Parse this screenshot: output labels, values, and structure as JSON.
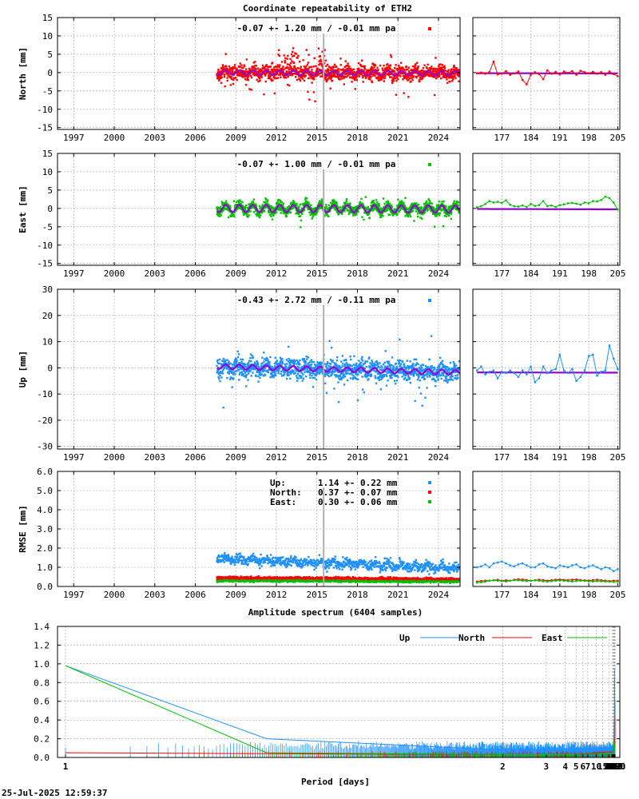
{
  "title": "Coordinate repeatability of ETH2",
  "timestamp": "25-Jul-2025 12:59:37",
  "colors": {
    "north": "#ff0000",
    "east": "#00c000",
    "up": "#1e90ff",
    "model": "#9400d3",
    "grid": "#a0a0a0",
    "marker_line": "#b0b0b0"
  },
  "chart_data": [
    {
      "type": "scatter",
      "ylabel": "North [mm]",
      "annotation": "-0.07 +- 1.20 mm / -0.01 mm pa",
      "series_color": "north",
      "x_ticks": [
        "1997",
        "2000",
        "2003",
        "2006",
        "2009",
        "2012",
        "2015",
        "2018",
        "2021",
        "2024"
      ],
      "xlim": [
        1995.8,
        2025.6
      ],
      "y_ticks": [
        "15",
        "10",
        "5",
        "0",
        "-5",
        "-10",
        "-15"
      ],
      "ylim": [
        -15.5,
        15
      ],
      "data_start": 2007.6,
      "data_end": 2025.55,
      "scatter_sd": 1.6,
      "seasonal_amp": 0.6,
      "trend": [
        0.0,
        -0.2
      ],
      "inset_x_ticks": [
        "177",
        "184",
        "191",
        "198",
        "205"
      ],
      "inset_xlim": [
        170,
        205.5
      ],
      "inset_points": [
        [
          171,
          -0.2
        ],
        [
          172,
          0.0
        ],
        [
          173,
          -0.3
        ],
        [
          174,
          0.1
        ],
        [
          175,
          3.0
        ],
        [
          176,
          -0.5
        ],
        [
          177,
          -0.3
        ],
        [
          178,
          0.4
        ],
        [
          179,
          -0.6
        ],
        [
          180,
          -0.2
        ],
        [
          181,
          0.3
        ],
        [
          182,
          -2.0
        ],
        [
          183,
          -3.2
        ],
        [
          184,
          -0.6
        ],
        [
          185,
          0.1
        ],
        [
          186,
          -0.4
        ],
        [
          187,
          -1.8
        ],
        [
          188,
          0.6
        ],
        [
          189,
          -0.3
        ],
        [
          190,
          0.2
        ],
        [
          191,
          -0.5
        ],
        [
          192,
          0.3
        ],
        [
          193,
          -0.1
        ],
        [
          194,
          0.4
        ],
        [
          195,
          -0.6
        ],
        [
          196,
          0.5
        ],
        [
          197,
          0.1
        ],
        [
          198,
          -0.2
        ],
        [
          199,
          0.2
        ],
        [
          200,
          -0.3
        ],
        [
          201,
          0.1
        ],
        [
          202,
          -0.6
        ],
        [
          203,
          0.3
        ],
        [
          204,
          -0.4
        ],
        [
          205,
          -1.0
        ]
      ]
    },
    {
      "type": "scatter",
      "ylabel": "East [mm]",
      "annotation": "-0.07 +- 1.00 mm / -0.01 mm pa",
      "series_color": "east",
      "x_ticks": [
        "1997",
        "2000",
        "2003",
        "2006",
        "2009",
        "2012",
        "2015",
        "2018",
        "2021",
        "2024"
      ],
      "xlim": [
        1995.8,
        2025.6
      ],
      "y_ticks": [
        "15",
        "10",
        "5",
        "0",
        "-5",
        "-10",
        "-15"
      ],
      "ylim": [
        -15.5,
        15
      ],
      "data_start": 2007.6,
      "data_end": 2025.55,
      "scatter_sd": 1.2,
      "seasonal_amp": 1.0,
      "trend": [
        0.0,
        -0.2
      ],
      "inset_x_ticks": [
        "177",
        "184",
        "191",
        "198",
        "205"
      ],
      "inset_xlim": [
        170,
        205.5
      ],
      "inset_points": [
        [
          171,
          0.3
        ],
        [
          172,
          0.6
        ],
        [
          173,
          1.2
        ],
        [
          174,
          2.0
        ],
        [
          175,
          1.6
        ],
        [
          176,
          1.8
        ],
        [
          177,
          1.5
        ],
        [
          178,
          2.2
        ],
        [
          179,
          1.0
        ],
        [
          180,
          0.6
        ],
        [
          181,
          0.5
        ],
        [
          182,
          0.8
        ],
        [
          183,
          0.4
        ],
        [
          184,
          1.2
        ],
        [
          185,
          0.7
        ],
        [
          186,
          0.9
        ],
        [
          187,
          2.0
        ],
        [
          188,
          0.6
        ],
        [
          189,
          0.8
        ],
        [
          190,
          0.4
        ],
        [
          191,
          0.9
        ],
        [
          192,
          1.1
        ],
        [
          193,
          1.4
        ],
        [
          194,
          1.5
        ],
        [
          195,
          1.3
        ],
        [
          196,
          1.0
        ],
        [
          197,
          1.6
        ],
        [
          198,
          1.4
        ],
        [
          199,
          2.0
        ],
        [
          200,
          1.9
        ],
        [
          201,
          2.3
        ],
        [
          202,
          3.2
        ],
        [
          203,
          2.8
        ],
        [
          204,
          1.6
        ],
        [
          205,
          -0.3
        ]
      ]
    },
    {
      "type": "scatter",
      "ylabel": "Up [mm]",
      "annotation": "-0.43 +- 2.72 mm / -0.11 mm pa",
      "series_color": "up",
      "x_ticks": [
        "1997",
        "2000",
        "2003",
        "2006",
        "2009",
        "2012",
        "2015",
        "2018",
        "2021",
        "2024"
      ],
      "xlim": [
        1995.8,
        2025.6
      ],
      "y_ticks": [
        "30",
        "20",
        "10",
        "0",
        "-10",
        "-20",
        "-30"
      ],
      "ylim": [
        -31,
        30
      ],
      "data_start": 2007.6,
      "data_end": 2025.55,
      "scatter_sd": 3.0,
      "seasonal_amp": 0.9,
      "trend": [
        0.5,
        -1.8
      ],
      "inset_x_ticks": [
        "177",
        "184",
        "191",
        "198",
        "205"
      ],
      "inset_xlim": [
        170,
        205.5
      ],
      "inset_points": [
        [
          171,
          -1.0
        ],
        [
          172,
          0.5
        ],
        [
          173,
          -2.5
        ],
        [
          174,
          -1.5
        ],
        [
          175,
          -1.0
        ],
        [
          176,
          -4.0
        ],
        [
          177,
          -1.5
        ],
        [
          178,
          -2.0
        ],
        [
          179,
          -1.0
        ],
        [
          180,
          -2.0
        ],
        [
          181,
          -3.5
        ],
        [
          182,
          -1.0
        ],
        [
          183,
          -2.5
        ],
        [
          184,
          0.5
        ],
        [
          185,
          -5.5
        ],
        [
          186,
          -4.0
        ],
        [
          187,
          0.5
        ],
        [
          188,
          -2.0
        ],
        [
          189,
          -1.0
        ],
        [
          190,
          -0.5
        ],
        [
          191,
          5.0
        ],
        [
          192,
          -1.0
        ],
        [
          193,
          -2.0
        ],
        [
          194,
          -0.5
        ],
        [
          195,
          -5.0
        ],
        [
          196,
          -3.5
        ],
        [
          197,
          -1.0
        ],
        [
          198,
          4.5
        ],
        [
          199,
          5.0
        ],
        [
          200,
          -3.0
        ],
        [
          201,
          -1.5
        ],
        [
          202,
          -1.0
        ],
        [
          203,
          8.5
        ],
        [
          204,
          3.5
        ],
        [
          205,
          -0.5
        ]
      ]
    },
    {
      "type": "scatter",
      "ylabel": "RMSE [mm]",
      "x_ticks": [
        "1997",
        "2000",
        "2003",
        "2006",
        "2009",
        "2012",
        "2015",
        "2018",
        "2021",
        "2024"
      ],
      "xlim": [
        1995.8,
        2025.6
      ],
      "y_ticks": [
        "6.0",
        "5.0",
        "4.0",
        "3.0",
        "2.0",
        "1.0",
        "0.0"
      ],
      "ylim": [
        0,
        6
      ],
      "data_start": 2007.6,
      "data_end": 2025.55,
      "legend": [
        {
          "label": "Up:",
          "value": "1.14 +- 0.22 mm",
          "color": "up"
        },
        {
          "label": "North:",
          "value": "0.37 +- 0.07 mm",
          "color": "north"
        },
        {
          "label": "East:",
          "value": "0.30 +- 0.06 mm",
          "color": "east"
        }
      ],
      "rmse_means": {
        "up_start": 1.45,
        "up_end": 0.95,
        "north": 0.45,
        "east": 0.3
      },
      "inset_x_ticks": [
        "177",
        "184",
        "191",
        "198",
        "205"
      ],
      "inset_xlim": [
        170,
        205.5
      ],
      "inset_up": [
        1.0,
        1.05,
        1.15,
        1.0,
        1.2,
        1.25,
        1.3,
        1.2,
        1.1,
        1.05,
        1.15,
        1.2,
        1.1,
        1.0,
        1.0,
        1.15,
        1.2,
        1.05,
        1.0,
        0.95,
        1.1,
        1.05,
        1.0,
        1.1,
        1.15,
        1.0,
        0.95,
        1.05,
        1.1,
        1.0,
        0.9,
        1.0,
        0.95,
        0.8,
        0.9
      ],
      "inset_north": [
        0.25,
        0.28,
        0.3,
        0.3,
        0.32,
        0.35,
        0.3,
        0.32,
        0.3,
        0.35,
        0.38,
        0.36,
        0.33,
        0.3,
        0.32,
        0.35,
        0.33,
        0.3,
        0.32,
        0.35,
        0.36,
        0.34,
        0.33,
        0.35,
        0.36,
        0.33,
        0.32,
        0.31,
        0.33,
        0.35,
        0.32,
        0.3,
        0.28,
        0.3,
        0.3
      ],
      "inset_east": [
        0.2,
        0.22,
        0.25,
        0.3,
        0.32,
        0.3,
        0.28,
        0.26,
        0.3,
        0.33,
        0.32,
        0.3,
        0.28,
        0.3,
        0.32,
        0.3,
        0.27,
        0.25,
        0.28,
        0.3,
        0.31,
        0.3,
        0.28,
        0.26,
        0.28,
        0.3,
        0.29,
        0.27,
        0.26,
        0.28,
        0.27,
        0.26,
        0.25,
        0.24,
        0.25
      ]
    },
    {
      "type": "line",
      "title": "Amplitude spectrum (6404 samples)",
      "xlabel": "Period [days]",
      "x_scale": "reciprocal",
      "x_ticks": [
        1,
        2,
        3,
        4,
        5,
        6,
        7,
        10,
        15,
        30,
        61,
        91,
        122,
        183,
        365,
        730,
        2190,
        4380,
        8760
      ],
      "y_ticks": [
        "1.4",
        "1.2",
        "1.0",
        "0.8",
        "0.6",
        "0.4",
        "0.2",
        "0.0"
      ],
      "ylim": [
        0,
        1.4
      ],
      "series": [
        {
          "name": "Up",
          "color": "up",
          "points": [
            [
              1,
              0.98
            ],
            [
              1.05,
              0.2
            ],
            [
              2,
              0.08
            ],
            [
              5,
              0.08
            ],
            [
              10,
              0.1
            ],
            [
              30,
              0.1
            ],
            [
              61,
              0.08
            ],
            [
              91,
              0.1
            ],
            [
              122,
              0.15
            ],
            [
              150,
              0.2
            ],
            [
              183,
              0.3
            ],
            [
              200,
              0.4
            ],
            [
              250,
              0.2
            ],
            [
              300,
              0.3
            ],
            [
              340,
              0.45
            ],
            [
              365,
              0.95
            ],
            [
              380,
              0.5
            ],
            [
              420,
              0.25
            ],
            [
              500,
              0.15
            ],
            [
              600,
              0.3
            ],
            [
              700,
              0.38
            ],
            [
              800,
              0.3
            ],
            [
              900,
              0.15
            ],
            [
              1100,
              0.35
            ],
            [
              1300,
              0.15
            ],
            [
              1500,
              0.25
            ],
            [
              1800,
              0.2
            ],
            [
              2000,
              0.1
            ],
            [
              2190,
              0.3
            ],
            [
              2500,
              0.44
            ],
            [
              3000,
              0.46
            ],
            [
              4000,
              0.48
            ],
            [
              6000,
              0.62
            ]
          ]
        },
        {
          "name": "North",
          "color": "north",
          "points": [
            [
              1,
              0.05
            ],
            [
              2,
              0.03
            ],
            [
              5,
              0.03
            ],
            [
              10,
              0.05
            ],
            [
              30,
              0.06
            ],
            [
              91,
              0.06
            ],
            [
              150,
              0.15
            ],
            [
              183,
              0.2
            ],
            [
              220,
              0.12
            ],
            [
              300,
              0.2
            ],
            [
              340,
              0.35
            ],
            [
              365,
              0.55
            ],
            [
              390,
              0.4
            ],
            [
              450,
              0.1
            ],
            [
              600,
              0.1
            ],
            [
              900,
              0.08
            ],
            [
              1200,
              0.1
            ],
            [
              1500,
              0.05
            ],
            [
              2000,
              0.1
            ],
            [
              2500,
              0.15
            ],
            [
              3000,
              0.25
            ],
            [
              4000,
              0.38
            ],
            [
              6000,
              0.42
            ]
          ]
        },
        {
          "name": "East",
          "color": "east",
          "points": [
            [
              1,
              0.98
            ],
            [
              1.05,
              0.05
            ],
            [
              2,
              0.03
            ],
            [
              5,
              0.03
            ],
            [
              10,
              0.04
            ],
            [
              30,
              0.05
            ],
            [
              91,
              0.05
            ],
            [
              150,
              0.12
            ],
            [
              183,
              0.18
            ],
            [
              230,
              0.1
            ],
            [
              300,
              0.15
            ],
            [
              340,
              0.4
            ],
            [
              365,
              0.85
            ],
            [
              380,
              0.4
            ],
            [
              450,
              0.05
            ],
            [
              600,
              0.1
            ],
            [
              900,
              0.12
            ],
            [
              1200,
              0.08
            ],
            [
              1800,
              0.05
            ],
            [
              2190,
              0.02
            ],
            [
              3000,
              0.06
            ],
            [
              4000,
              0.08
            ],
            [
              6000,
              0.12
            ]
          ]
        }
      ]
    }
  ]
}
